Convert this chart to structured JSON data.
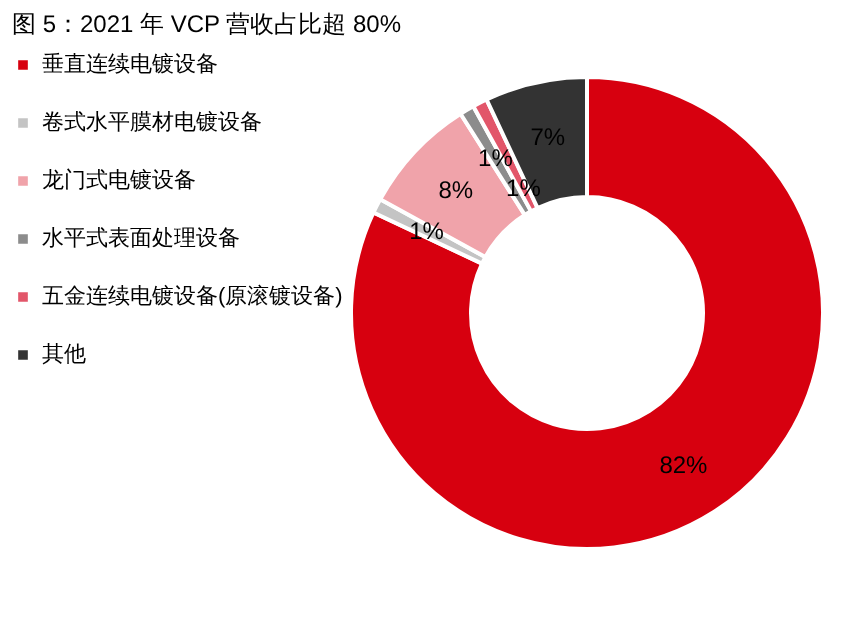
{
  "chart_data": {
    "type": "donut",
    "title": "图 5：2021 年 VCP 营收占比超 80%",
    "categories": [
      "垂直连续电镀设备",
      "卷式水平膜材电镀设备",
      "龙门式电镀设备",
      "水平式表面处理设备",
      "五金连续电镀设备(原滚镀设备)",
      "其他"
    ],
    "values": [
      82,
      1,
      8,
      1,
      1,
      7
    ],
    "value_labels": [
      "82%",
      "1%",
      "8%",
      "1%",
      "1%",
      "7%"
    ],
    "colors": [
      "#d7000f",
      "#c4c4c4",
      "#f0a3aa",
      "#8c8c8c",
      "#e2566a",
      "#333333"
    ],
    "legend": "left"
  }
}
